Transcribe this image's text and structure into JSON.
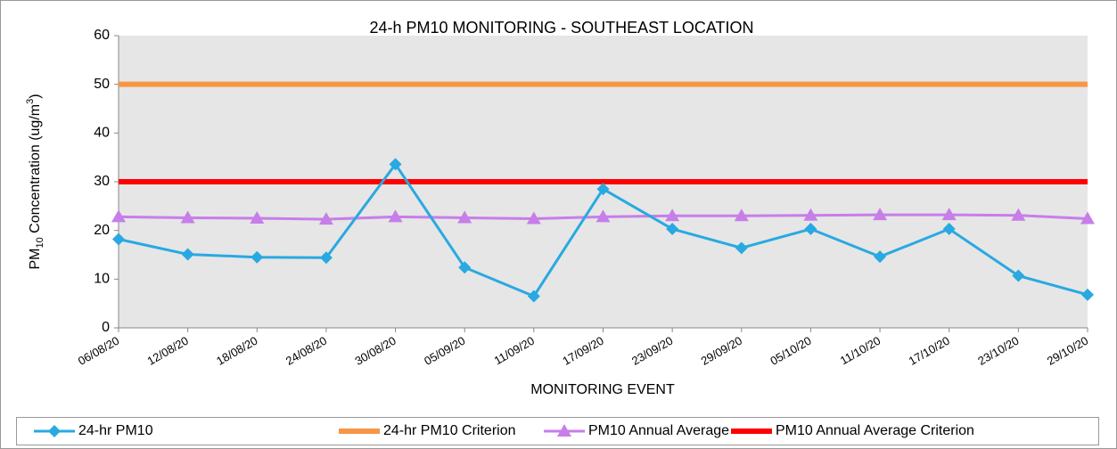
{
  "chart_data": {
    "type": "line",
    "title": "24-h PM10 MONITORING - SOUTHEAST LOCATION",
    "x_label": "MONITORING EVENT",
    "y_label": [
      "PM",
      "10",
      " Concentration (ug/m",
      "3",
      ")"
    ],
    "categories": [
      "06/08/20",
      "12/08/20",
      "18/08/20",
      "24/08/20",
      "30/08/20",
      "05/09/20",
      "11/09/20",
      "17/09/20",
      "23/09/20",
      "29/09/20",
      "05/10/20",
      "11/10/20",
      "17/10/20",
      "23/10/20",
      "29/10/20"
    ],
    "series": [
      {
        "name": "24-hr PM10",
        "color": "#29a9e1",
        "marker": "diamond",
        "width": 3,
        "values": [
          18.2,
          15.1,
          14.5,
          14.4,
          33.6,
          12.4,
          6.5,
          28.5,
          20.3,
          16.4,
          20.3,
          14.6,
          20.3,
          10.7,
          6.8
        ]
      },
      {
        "name": "24-hr PM10 Criterion",
        "color": "#f79646",
        "marker": "none",
        "width": 6,
        "values": [
          50,
          50,
          50,
          50,
          50,
          50,
          50,
          50,
          50,
          50,
          50,
          50,
          50,
          50,
          50
        ]
      },
      {
        "name": "PM10 Annual Average",
        "color": "#c77ee9",
        "marker": "triangle",
        "width": 3,
        "values": [
          22.8,
          22.6,
          22.5,
          22.3,
          22.8,
          22.6,
          22.4,
          22.8,
          23.0,
          23.0,
          23.1,
          23.2,
          23.2,
          23.1,
          22.4
        ]
      },
      {
        "name": "PM10 Annual Average Criterion",
        "color": "#ff0000",
        "marker": "none",
        "width": 6,
        "values": [
          30,
          30,
          30,
          30,
          30,
          30,
          30,
          30,
          30,
          30,
          30,
          30,
          30,
          30,
          30
        ]
      }
    ],
    "ylim": [
      0,
      60
    ],
    "yticks": [
      0,
      10,
      20,
      30,
      40,
      50,
      60
    ],
    "grid": false,
    "legend": "bottom"
  }
}
